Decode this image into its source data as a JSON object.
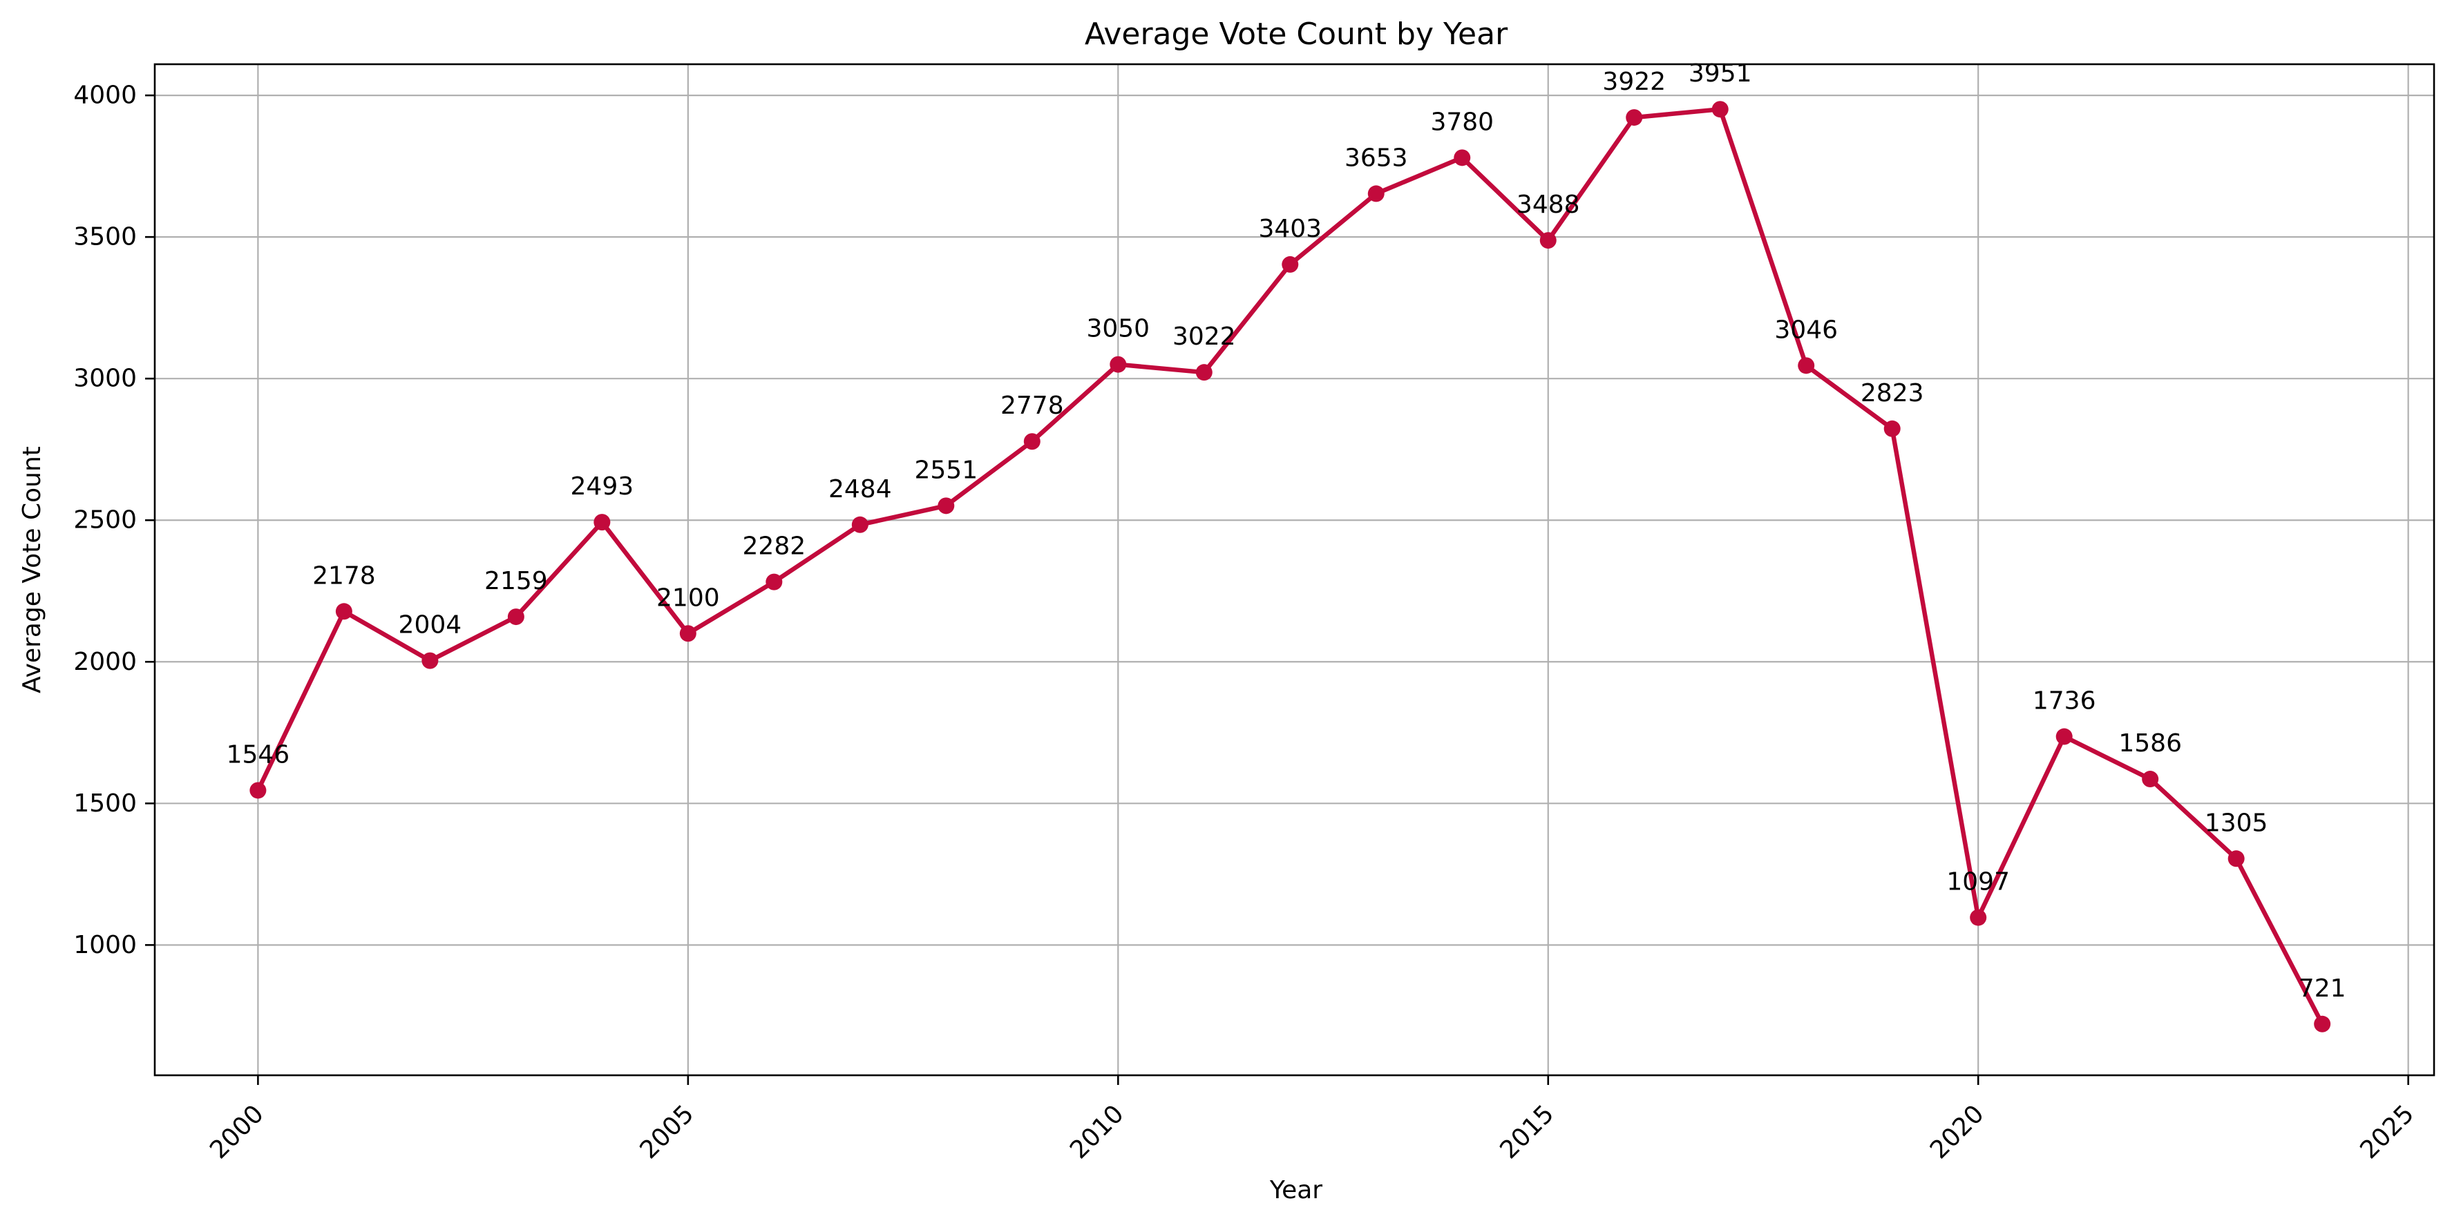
{
  "chart_data": {
    "type": "line",
    "title": "Average Vote Count by Year",
    "xlabel": "Year",
    "ylabel": "Average Vote Count",
    "xlim": [
      1998.8,
      2025.3
    ],
    "ylim": [
      540,
      4110
    ],
    "xticks": [
      2000,
      2005,
      2010,
      2015,
      2020,
      2025
    ],
    "yticks": [
      1000,
      1500,
      2000,
      2500,
      3000,
      3500,
      4000
    ],
    "grid": true,
    "series_color": "#c20a3c",
    "x": [
      2000,
      2001,
      2002,
      2003,
      2004,
      2005,
      2006,
      2007,
      2008,
      2009,
      2010,
      2011,
      2012,
      2013,
      2014,
      2015,
      2016,
      2017,
      2018,
      2019,
      2020,
      2021,
      2022,
      2023,
      2024
    ],
    "values": [
      1546,
      2178,
      2004,
      2159,
      2493,
      2100,
      2282,
      2484,
      2551,
      2778,
      3050,
      3022,
      3403,
      3653,
      3780,
      3488,
      3922,
      3951,
      3046,
      2823,
      1097,
      1736,
      1586,
      1305,
      721
    ],
    "data_labels": [
      "1546",
      "2178",
      "2004",
      "2159",
      "2493",
      "2100",
      "2282",
      "2484",
      "2551",
      "2778",
      "3050",
      "3022",
      "3403",
      "3653",
      "3780",
      "3488",
      "3922",
      "3951",
      "3046",
      "2823",
      "1097",
      "1736",
      "1586",
      "1305",
      "721"
    ]
  }
}
